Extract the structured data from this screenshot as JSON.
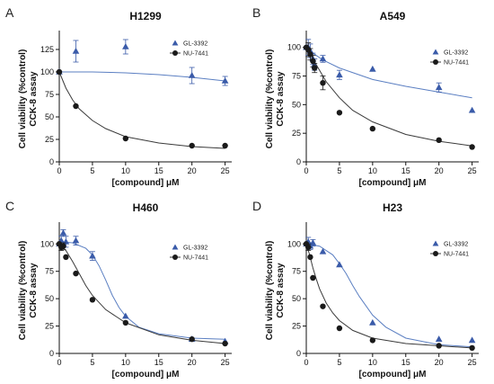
{
  "panel_labels": [
    "A",
    "B",
    "C",
    "D"
  ],
  "colors": {
    "gl": "#3a5ba9",
    "nu": "#1a1a1a",
    "gl_curve": "#5b7fc2",
    "nu_curve": "#3a3a3a"
  },
  "chart_data": [
    {
      "type": "scatter",
      "title": "H1299",
      "ylabel_line1": "Cell viability (%control)",
      "ylabel_line2": "CCK-8 assay",
      "xlabel": "[compound] μM",
      "xlim": [
        0,
        26
      ],
      "ylim": [
        0,
        140
      ],
      "xticks": [
        "0",
        "5",
        "10",
        "15",
        "20",
        "25"
      ],
      "yticks": [
        "0",
        "25",
        "50",
        "75",
        "100",
        "125"
      ],
      "legend_position": "top-right",
      "series": [
        {
          "name": "GL-3392",
          "marker": "triangle",
          "x": [
            0,
            2.5,
            10,
            20,
            25
          ],
          "y": [
            100,
            123,
            128,
            96,
            90
          ],
          "err": [
            0,
            12,
            8,
            9,
            5
          ],
          "fit": [
            [
              0,
              100
            ],
            [
              5,
              100
            ],
            [
              10,
              99
            ],
            [
              15,
              97
            ],
            [
              20,
              94
            ],
            [
              25,
              90
            ]
          ]
        },
        {
          "name": "NU-7441",
          "marker": "circle",
          "x": [
            0,
            2.5,
            10,
            20,
            25
          ],
          "y": [
            100,
            62,
            26,
            18,
            18
          ],
          "err": [
            0,
            0,
            0,
            0,
            0
          ],
          "fit": [
            [
              0,
              100
            ],
            [
              1,
              82
            ],
            [
              2,
              69
            ],
            [
              3,
              59
            ],
            [
              5,
              46
            ],
            [
              7,
              37
            ],
            [
              10,
              28
            ],
            [
              15,
              21
            ],
            [
              20,
              17
            ],
            [
              25,
              15
            ]
          ]
        }
      ]
    },
    {
      "type": "scatter",
      "title": "A549",
      "ylabel_line1": "Cell viability (%control)",
      "ylabel_line2": "CCK-8 assay",
      "xlabel": "[compound] μM",
      "xlim": [
        0,
        26
      ],
      "ylim": [
        0,
        110
      ],
      "xticks": [
        "0",
        "5",
        "10",
        "15",
        "20",
        "25"
      ],
      "yticks": [
        "0",
        "25",
        "50",
        "75",
        "100"
      ],
      "legend_position": "top-right",
      "series": [
        {
          "name": "GL-3392",
          "marker": "triangle",
          "x": [
            0,
            0.3,
            0.6,
            1,
            1.25,
            2.5,
            5,
            10,
            20,
            25
          ],
          "y": [
            100,
            100,
            97,
            90,
            85,
            90,
            76,
            81,
            65,
            45
          ],
          "err": [
            0,
            7,
            6,
            5,
            5,
            3,
            4,
            0,
            4,
            0
          ],
          "fit": [
            [
              0,
              100
            ],
            [
              1,
              95
            ],
            [
              2.5,
              89
            ],
            [
              5,
              82
            ],
            [
              10,
              72
            ],
            [
              15,
              66
            ],
            [
              20,
              61
            ],
            [
              25,
              56
            ]
          ]
        },
        {
          "name": "NU-7441",
          "marker": "circle",
          "x": [
            0,
            0.3,
            0.6,
            1,
            1.25,
            2.5,
            5,
            10,
            20,
            25
          ],
          "y": [
            100,
            98,
            94,
            88,
            82,
            69,
            43,
            29,
            19,
            13
          ],
          "err": [
            0,
            6,
            5,
            5,
            4,
            6,
            0,
            0,
            0,
            0
          ],
          "fit": [
            [
              0,
              100
            ],
            [
              0.5,
              96
            ],
            [
              1,
              90
            ],
            [
              2,
              80
            ],
            [
              3,
              70
            ],
            [
              5,
              56
            ],
            [
              7,
              45
            ],
            [
              10,
              35
            ],
            [
              15,
              24
            ],
            [
              20,
              18
            ],
            [
              25,
              14
            ]
          ]
        }
      ]
    },
    {
      "type": "scatter",
      "title": "H460",
      "ylabel_line1": "Cell viability (%control)",
      "ylabel_line2": "CCK-8 assay",
      "xlabel": "[compound] μM",
      "xlim": [
        0,
        26
      ],
      "ylim": [
        0,
        115
      ],
      "xticks": [
        "0",
        "5",
        "10",
        "15",
        "20",
        "25"
      ],
      "yticks": [
        "0",
        "25",
        "50",
        "75",
        "100"
      ],
      "legend_position": "top-right",
      "series": [
        {
          "name": "GL-3392",
          "marker": "triangle",
          "x": [
            0,
            0.3,
            0.6,
            1,
            2.5,
            5,
            10,
            20,
            25
          ],
          "y": [
            100,
            103,
            110,
            102,
            103,
            89,
            34,
            13,
            11
          ],
          "err": [
            0,
            4,
            3,
            5,
            4,
            4,
            0,
            0,
            0
          ],
          "fit": [
            [
              0,
              102
            ],
            [
              2,
              101
            ],
            [
              4,
              96
            ],
            [
              5,
              90
            ],
            [
              6,
              80
            ],
            [
              7,
              67
            ],
            [
              8,
              53
            ],
            [
              9,
              42
            ],
            [
              10,
              34
            ],
            [
              12,
              24
            ],
            [
              15,
              18
            ],
            [
              20,
              14
            ],
            [
              25,
              13
            ]
          ]
        },
        {
          "name": "NU-7441",
          "marker": "circle",
          "x": [
            0,
            0.3,
            0.6,
            1,
            2.5,
            5,
            10,
            20,
            25
          ],
          "y": [
            100,
            97,
            98,
            88,
            73,
            49,
            28,
            13,
            9
          ],
          "err": [
            0,
            3,
            3,
            0,
            0,
            0,
            0,
            0,
            0
          ],
          "fit": [
            [
              0,
              100
            ],
            [
              1,
              94
            ],
            [
              2,
              84
            ],
            [
              3,
              73
            ],
            [
              4,
              62
            ],
            [
              5,
              53
            ],
            [
              7,
              40
            ],
            [
              10,
              28
            ],
            [
              15,
              17
            ],
            [
              20,
              12
            ],
            [
              25,
              9
            ]
          ]
        }
      ]
    },
    {
      "type": "scatter",
      "title": "H23",
      "ylabel_line1": "Cell viability (%control)",
      "ylabel_line2": "CCK-8 assay",
      "xlabel": "[compound] μM",
      "xlim": [
        0,
        26
      ],
      "ylim": [
        0,
        115
      ],
      "xticks": [
        "0",
        "5",
        "10",
        "15",
        "20",
        "25"
      ],
      "yticks": [
        "0",
        "25",
        "50",
        "75",
        "100"
      ],
      "legend_position": "top-right",
      "series": [
        {
          "name": "GL-3392",
          "marker": "triangle",
          "x": [
            0,
            0.3,
            0.6,
            1,
            2.5,
            5,
            10,
            20,
            25
          ],
          "y": [
            100,
            102,
            98,
            101,
            93,
            81,
            28,
            13,
            12
          ],
          "err": [
            0,
            4,
            3,
            3,
            0,
            0,
            0,
            0,
            0
          ],
          "fit": [
            [
              0,
              100
            ],
            [
              2,
              98
            ],
            [
              4,
              90
            ],
            [
              5,
              82
            ],
            [
              6,
              73
            ],
            [
              7,
              62
            ],
            [
              8,
              52
            ],
            [
              10,
              35
            ],
            [
              12,
              24
            ],
            [
              15,
              14
            ],
            [
              20,
              8
            ],
            [
              25,
              6
            ]
          ]
        },
        {
          "name": "NU-7441",
          "marker": "circle",
          "x": [
            0,
            0.3,
            0.6,
            1,
            2.5,
            5,
            10,
            20,
            25
          ],
          "y": [
            100,
            97,
            88,
            69,
            43,
            23,
            12,
            7,
            5
          ],
          "err": [
            0,
            3,
            0,
            0,
            0,
            0,
            0,
            0,
            0
          ],
          "fit": [
            [
              0,
              100
            ],
            [
              0.5,
              90
            ],
            [
              1,
              78
            ],
            [
              1.5,
              68
            ],
            [
              2,
              59
            ],
            [
              3,
              46
            ],
            [
              4,
              37
            ],
            [
              5,
              30
            ],
            [
              7,
              21
            ],
            [
              10,
              14
            ],
            [
              15,
              9
            ],
            [
              20,
              7
            ],
            [
              25,
              5
            ]
          ]
        }
      ]
    }
  ]
}
